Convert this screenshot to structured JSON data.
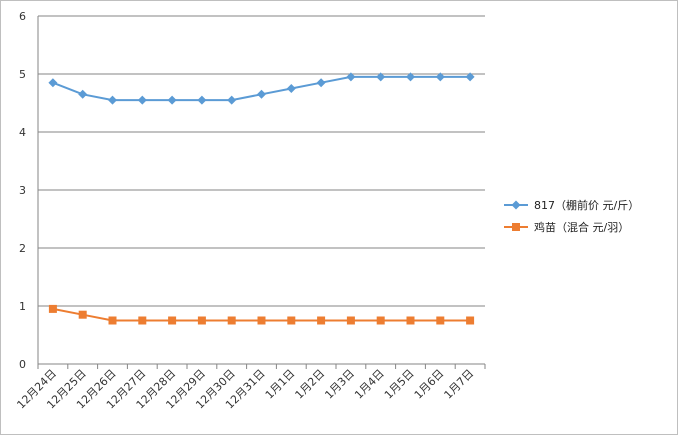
{
  "chart_data": {
    "type": "line",
    "title": "",
    "xlabel": "",
    "ylabel": "",
    "ylim": [
      0,
      6
    ],
    "yticks": [
      "0",
      "1",
      "2",
      "3",
      "4",
      "5",
      "6"
    ],
    "grid": true,
    "legend_position": "right",
    "categories": [
      "12月24日",
      "12月25日",
      "12月26日",
      "12月27日",
      "12月28日",
      "12月29日",
      "12月30日",
      "12月31日",
      "1月1日",
      "1月2日",
      "1月3日",
      "1月4日",
      "1月5日",
      "1月6日",
      "1月7日"
    ],
    "series": [
      {
        "name": "817（棚前价 元/斤）",
        "color": "#5b9bd5",
        "marker": "diamond",
        "values": [
          4.85,
          4.65,
          4.55,
          4.55,
          4.55,
          4.55,
          4.55,
          4.65,
          4.75,
          4.85,
          4.95,
          4.95,
          4.95,
          4.95,
          4.95
        ]
      },
      {
        "name": "鸡苗（混合 元/羽）",
        "color": "#ed7d31",
        "marker": "square",
        "values": [
          0.95,
          0.85,
          0.75,
          0.75,
          0.75,
          0.75,
          0.75,
          0.75,
          0.75,
          0.75,
          0.75,
          0.75,
          0.75,
          0.75,
          0.75
        ]
      }
    ]
  }
}
